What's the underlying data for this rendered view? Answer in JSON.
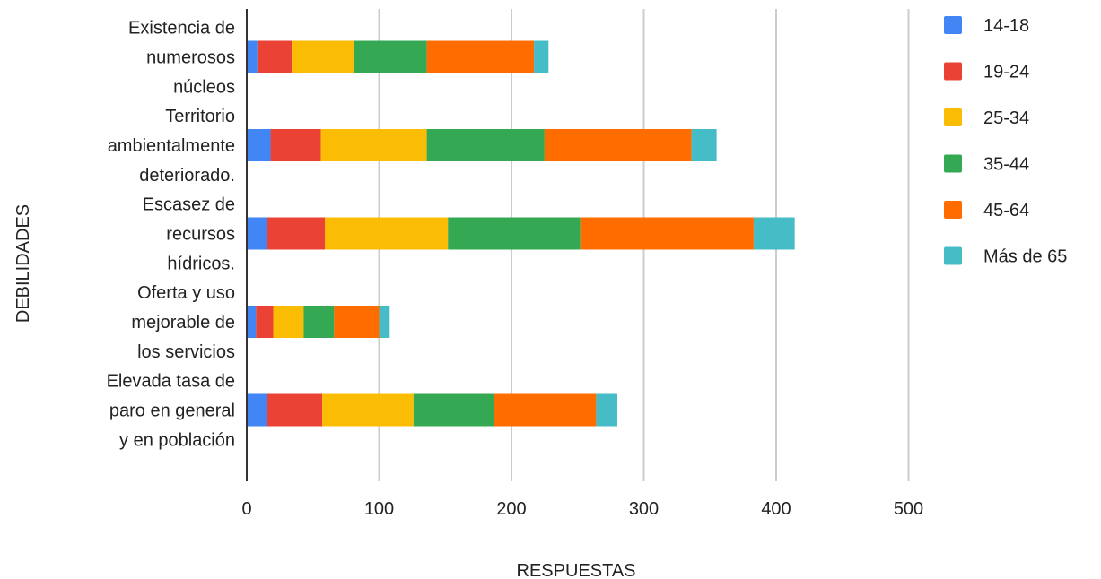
{
  "chart_data": {
    "type": "bar",
    "orientation": "horizontal",
    "stacked": true,
    "title": "",
    "xlabel": "RESPUESTAS",
    "ylabel": "DEBILIDADES",
    "xlim": [
      0,
      500
    ],
    "xticks": [
      0,
      100,
      200,
      300,
      400,
      500
    ],
    "grid": true,
    "legend_position": "right",
    "categories": [
      [
        "Existencia de",
        "numerosos",
        "núcleos"
      ],
      [
        "Territorio",
        "ambientalmente",
        "deteriorado."
      ],
      [
        "Escasez de",
        "recursos",
        "hídricos."
      ],
      [
        "Oferta y uso",
        "mejorable de",
        "los servicios"
      ],
      [
        "Elevada tasa de",
        "paro en general",
        "y en población"
      ]
    ],
    "series": [
      {
        "name": "14-18",
        "color": "#4285F4",
        "values": [
          8,
          18,
          15,
          7,
          15
        ]
      },
      {
        "name": "19-24",
        "color": "#EA4335",
        "values": [
          26,
          38,
          44,
          13,
          42
        ]
      },
      {
        "name": "25-34",
        "color": "#FBBC04",
        "values": [
          47,
          80,
          93,
          23,
          69
        ]
      },
      {
        "name": "35-44",
        "color": "#34A853",
        "values": [
          55,
          89,
          100,
          23,
          61
        ]
      },
      {
        "name": "45-64",
        "color": "#FF6D01",
        "values": [
          81,
          111,
          131,
          34,
          77
        ]
      },
      {
        "name": "Más de 65",
        "color": "#46BDC6",
        "values": [
          11,
          19,
          31,
          8,
          16
        ]
      }
    ]
  }
}
